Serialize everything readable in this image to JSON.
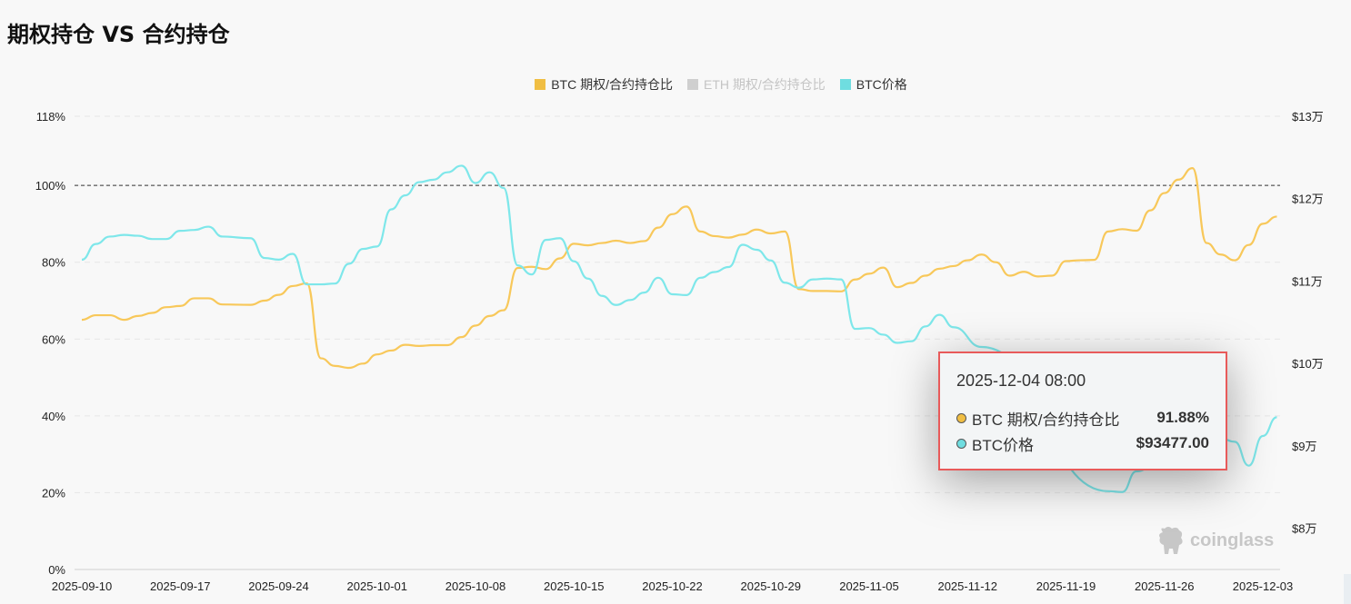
{
  "page": {
    "title": "期权持仓 VS 合约持仓"
  },
  "legend": [
    {
      "label": "BTC  期权/合约持仓比",
      "color": "#f0be43",
      "active": true
    },
    {
      "label": "ETH  期权/合约持仓比",
      "color": "#cfcfcf",
      "active": false
    },
    {
      "label": "BTC价格",
      "color": "#6fdde0",
      "active": true
    }
  ],
  "tooltip": {
    "date": "2025-12-04 08:00",
    "rows": [
      {
        "name": "BTC 期权/合约持仓比",
        "value": "91.88%",
        "color": "#f0be43"
      },
      {
        "name": "BTC价格",
        "value": "$93477.00",
        "color": "#6fdde0"
      }
    ]
  },
  "watermark": {
    "text": "coinglass"
  },
  "chart_data": {
    "type": "line",
    "x_ticks": [
      "2025-09-10",
      "2025-09-17",
      "2025-09-24",
      "2025-10-01",
      "2025-10-08",
      "2025-10-15",
      "2025-10-22",
      "2025-10-29",
      "2025-11-05",
      "2025-11-12",
      "2025-11-19",
      "2025-11-26",
      "2025-12-03"
    ],
    "y_left": {
      "ticks": [
        "0%",
        "20%",
        "40%",
        "60%",
        "80%",
        "100%",
        "118%"
      ],
      "range": [
        0,
        118
      ],
      "reference_line": 100
    },
    "y_right": {
      "ticks": [
        "$8万",
        "$9万",
        "$10万",
        "$11万",
        "$12万",
        "$13万"
      ],
      "range": [
        75000,
        130000
      ]
    },
    "grid": true,
    "legend_position": "top-center",
    "series": [
      {
        "name": "BTC  期权/合约持仓比",
        "axis": "left",
        "color": "#f8c85a",
        "points": [
          [
            "2025-09-10",
            65
          ],
          [
            "2025-09-11",
            66.2
          ],
          [
            "2025-09-12",
            66.2
          ],
          [
            "2025-09-13",
            65
          ],
          [
            "2025-09-14",
            66
          ],
          [
            "2025-09-15",
            66.8
          ],
          [
            "2025-09-16",
            68.3
          ],
          [
            "2025-09-17",
            68.6
          ],
          [
            "2025-09-18",
            70.6
          ],
          [
            "2025-09-19",
            70.6
          ],
          [
            "2025-09-20",
            69
          ],
          [
            "2025-09-22",
            68.9
          ],
          [
            "2025-09-23",
            70
          ],
          [
            "2025-09-24",
            71.5
          ],
          [
            "2025-09-25",
            73.8
          ],
          [
            "2025-09-26",
            74.5
          ],
          [
            "2025-09-27",
            55
          ],
          [
            "2025-09-28",
            53
          ],
          [
            "2025-09-29",
            52.5
          ],
          [
            "2025-09-30",
            53.6
          ],
          [
            "2025-10-01",
            56
          ],
          [
            "2025-10-02",
            57
          ],
          [
            "2025-10-03",
            58.5
          ],
          [
            "2025-10-04",
            58.2
          ],
          [
            "2025-10-05",
            58.4
          ],
          [
            "2025-10-06",
            58.4
          ],
          [
            "2025-10-07",
            60.5
          ],
          [
            "2025-10-08",
            63.5
          ],
          [
            "2025-10-09",
            66
          ],
          [
            "2025-10-10",
            67.5
          ],
          [
            "2025-10-11",
            78.5
          ],
          [
            "2025-10-12",
            78.8
          ],
          [
            "2025-10-13",
            78.2
          ],
          [
            "2025-10-14",
            81
          ],
          [
            "2025-10-15",
            84.8
          ],
          [
            "2025-10-16",
            84.4
          ],
          [
            "2025-10-17",
            85
          ],
          [
            "2025-10-18",
            85.6
          ],
          [
            "2025-10-19",
            85
          ],
          [
            "2025-10-20",
            85.5
          ],
          [
            "2025-10-21",
            89
          ],
          [
            "2025-10-22",
            92.5
          ],
          [
            "2025-10-23",
            94.5
          ],
          [
            "2025-10-24",
            88
          ],
          [
            "2025-10-25",
            86.8
          ],
          [
            "2025-10-26",
            86.4
          ],
          [
            "2025-10-27",
            87.2
          ],
          [
            "2025-10-28",
            88.5
          ],
          [
            "2025-10-29",
            87.5
          ],
          [
            "2025-10-30",
            88
          ],
          [
            "2025-10-31",
            73
          ],
          [
            "2025-11-01",
            72.5
          ],
          [
            "2025-11-02",
            72.5
          ],
          [
            "2025-11-03",
            72.4
          ],
          [
            "2025-11-04",
            75.5
          ],
          [
            "2025-11-05",
            77
          ],
          [
            "2025-11-06",
            78.6
          ],
          [
            "2025-11-07",
            73.5
          ],
          [
            "2025-11-08",
            74.6
          ],
          [
            "2025-11-09",
            76.5
          ],
          [
            "2025-11-10",
            78.3
          ],
          [
            "2025-11-11",
            79
          ],
          [
            "2025-11-12",
            80.5
          ],
          [
            "2025-11-13",
            82
          ],
          [
            "2025-11-14",
            80
          ],
          [
            "2025-11-15",
            76.5
          ],
          [
            "2025-11-16",
            77.5
          ],
          [
            "2025-11-17",
            76.3
          ],
          [
            "2025-11-18",
            76.5
          ],
          [
            "2025-11-19",
            80.3
          ],
          [
            "2025-11-20",
            80.5
          ],
          [
            "2025-11-21",
            80.6
          ],
          [
            "2025-11-22",
            88
          ],
          [
            "2025-11-23",
            88.6
          ],
          [
            "2025-11-24",
            88.2
          ],
          [
            "2025-11-25",
            93.5
          ],
          [
            "2025-11-26",
            98
          ],
          [
            "2025-11-27",
            101.5
          ],
          [
            "2025-11-28",
            104.5
          ],
          [
            "2025-11-29",
            85
          ],
          [
            "2025-11-30",
            82
          ],
          [
            "2025-12-01",
            80.5
          ],
          [
            "2025-12-02",
            84.5
          ],
          [
            "2025-12-03",
            90
          ],
          [
            "2025-12-04",
            91.88
          ]
        ]
      },
      {
        "name": "BTC价格",
        "axis": "right",
        "color": "#7ee7ea",
        "points": [
          [
            "2025-09-10",
            112600
          ],
          [
            "2025-09-11",
            114500
          ],
          [
            "2025-09-12",
            115400
          ],
          [
            "2025-09-13",
            115600
          ],
          [
            "2025-09-14",
            115500
          ],
          [
            "2025-09-15",
            115100
          ],
          [
            "2025-09-16",
            115100
          ],
          [
            "2025-09-17",
            116100
          ],
          [
            "2025-09-18",
            116200
          ],
          [
            "2025-09-19",
            116600
          ],
          [
            "2025-09-20",
            115400
          ],
          [
            "2025-09-22",
            115200
          ],
          [
            "2025-09-23",
            112800
          ],
          [
            "2025-09-24",
            112600
          ],
          [
            "2025-09-25",
            113300
          ],
          [
            "2025-09-26",
            109600
          ],
          [
            "2025-09-27",
            109600
          ],
          [
            "2025-09-28",
            109700
          ],
          [
            "2025-09-29",
            112100
          ],
          [
            "2025-09-30",
            113900
          ],
          [
            "2025-10-01",
            114200
          ],
          [
            "2025-10-02",
            118700
          ],
          [
            "2025-10-03",
            120400
          ],
          [
            "2025-10-04",
            122000
          ],
          [
            "2025-10-05",
            122300
          ],
          [
            "2025-10-06",
            123200
          ],
          [
            "2025-10-07",
            124000
          ],
          [
            "2025-10-08",
            121900
          ],
          [
            "2025-10-09",
            123200
          ],
          [
            "2025-10-10",
            121300
          ],
          [
            "2025-10-11",
            111900
          ],
          [
            "2025-10-12",
            110800
          ],
          [
            "2025-10-13",
            115000
          ],
          [
            "2025-10-14",
            115200
          ],
          [
            "2025-10-15",
            112400
          ],
          [
            "2025-10-16",
            110300
          ],
          [
            "2025-10-17",
            108200
          ],
          [
            "2025-10-18",
            107100
          ],
          [
            "2025-10-19",
            107700
          ],
          [
            "2025-10-20",
            108600
          ],
          [
            "2025-10-21",
            110400
          ],
          [
            "2025-10-22",
            108400
          ],
          [
            "2025-10-23",
            108300
          ],
          [
            "2025-10-24",
            110400
          ],
          [
            "2025-10-25",
            111100
          ],
          [
            "2025-10-26",
            111700
          ],
          [
            "2025-10-27",
            114400
          ],
          [
            "2025-10-28",
            113800
          ],
          [
            "2025-10-29",
            112500
          ],
          [
            "2025-10-30",
            109800
          ],
          [
            "2025-10-31",
            109200
          ],
          [
            "2025-11-01",
            110200
          ],
          [
            "2025-11-02",
            110300
          ],
          [
            "2025-11-03",
            110200
          ],
          [
            "2025-11-04",
            104200
          ],
          [
            "2025-11-05",
            104300
          ],
          [
            "2025-11-06",
            103500
          ],
          [
            "2025-11-07",
            102500
          ],
          [
            "2025-11-08",
            102700
          ],
          [
            "2025-11-09",
            104500
          ],
          [
            "2025-11-10",
            105900
          ],
          [
            "2025-11-11",
            104400
          ],
          [
            "2025-11-13",
            102000
          ],
          [
            "2025-11-22",
            84500
          ],
          [
            "2025-11-23",
            84400
          ],
          [
            "2025-11-24",
            86900
          ],
          [
            "2025-11-25",
            87300
          ],
          [
            "2025-11-26",
            88100
          ],
          [
            "2025-11-27",
            90000
          ],
          [
            "2025-11-28",
            90500
          ],
          [
            "2025-11-29",
            91100
          ],
          [
            "2025-11-30",
            90900
          ],
          [
            "2025-12-01",
            90500
          ],
          [
            "2025-12-02",
            87600
          ],
          [
            "2025-12-03",
            91200
          ],
          [
            "2025-12-04",
            93477
          ]
        ]
      }
    ]
  }
}
